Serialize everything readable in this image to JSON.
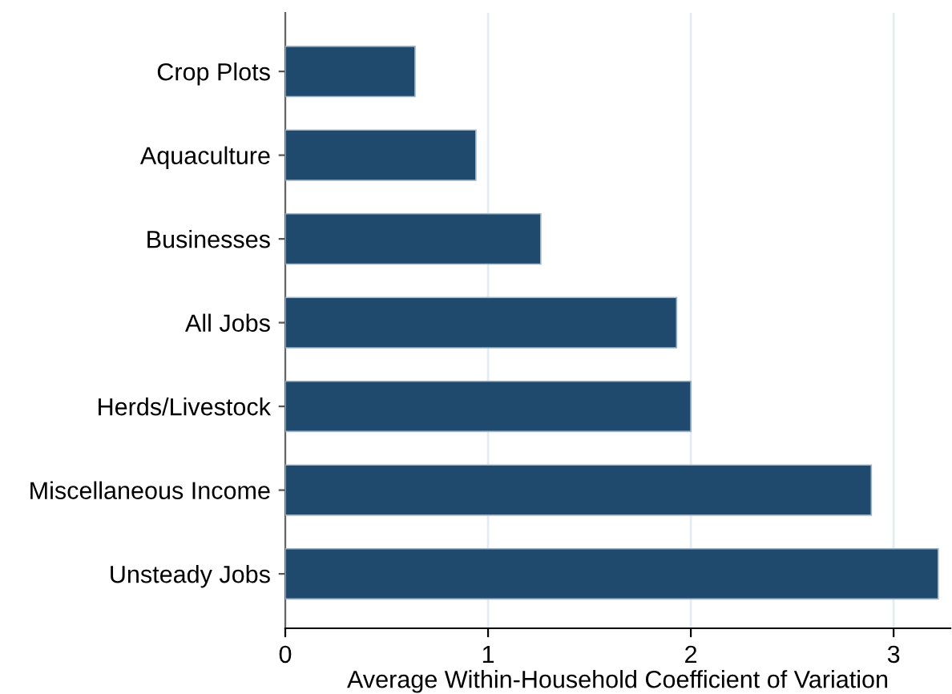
{
  "chart_data": {
    "type": "bar",
    "orientation": "horizontal",
    "xlabel": "Average Within-Household Coefficient of Variation",
    "categories": [
      "Crop Plots",
      "Aquaculture",
      "Businesses",
      "All Jobs",
      "Herds/Livestock",
      "Miscellaneous Income",
      "Unsteady Jobs"
    ],
    "values": [
      0.64,
      0.94,
      1.26,
      1.93,
      2.0,
      2.89,
      3.22
    ],
    "color": "#1f4a6e",
    "xlim": [
      0,
      3.28
    ],
    "xticks": [
      0,
      1,
      2,
      3
    ],
    "grid": "x"
  }
}
